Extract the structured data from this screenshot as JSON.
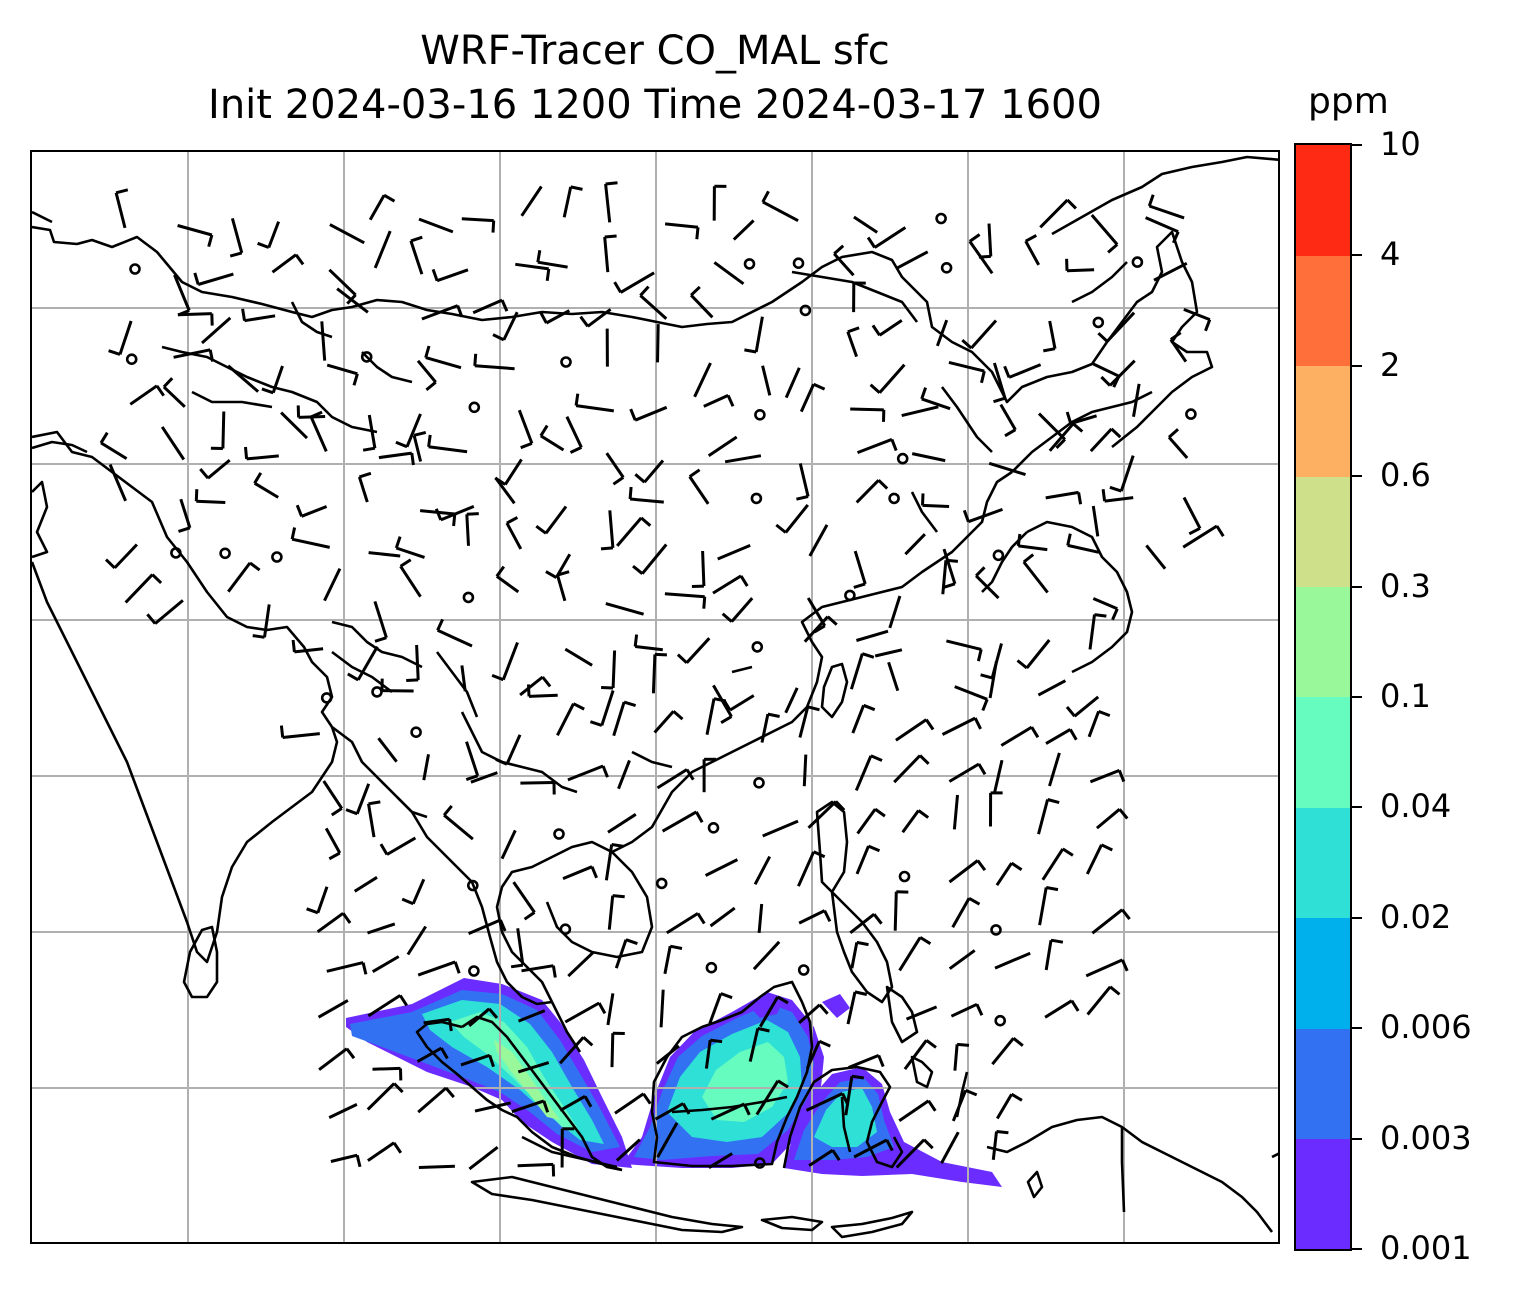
{
  "title": {
    "line1": "WRF-Tracer CO_MAL sfc",
    "line2": "Init 2024-03-16 1200 Time 2024-03-17 1600"
  },
  "colorbar": {
    "units": "ppm",
    "ticks": [
      "0.001",
      "0.003",
      "0.006",
      "0.02",
      "0.04",
      "0.1",
      "0.3",
      "0.6",
      "2",
      "4",
      "10"
    ],
    "colors": [
      "#6a2cff",
      "#3272f2",
      "#00b0ec",
      "#2fe0d6",
      "#66fcc0",
      "#98f89a",
      "#cfe08a",
      "#fdb062",
      "#ff6f3a",
      "#ff2a14"
    ]
  },
  "map": {
    "gridline_color": "#b0b0b0",
    "coastline_color": "#000000",
    "field": "CO_MAL surface tracer concentration",
    "wind_barbs_shown": true
  }
}
